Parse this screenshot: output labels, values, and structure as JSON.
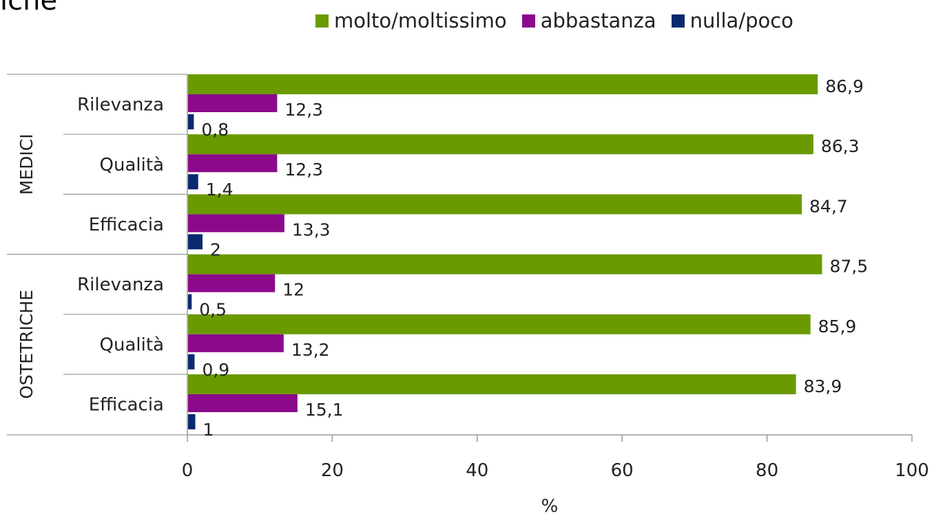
{
  "top_text": "iche",
  "chart_data": {
    "type": "bar",
    "orientation": "horizontal",
    "groups": [
      {
        "label": "MEDICI",
        "categories": [
          "Rilevanza",
          "Qualità",
          "Efficacia"
        ]
      },
      {
        "label": "OSTETRICHE",
        "categories": [
          "Rilevanza",
          "Qualità",
          "Efficacia"
        ]
      }
    ],
    "series": [
      {
        "name": "molto/moltissimo",
        "color": "#6a9a00",
        "values": [
          86.9,
          86.3,
          84.7,
          87.5,
          85.9,
          83.9
        ],
        "labels": [
          "86,9",
          "86,3",
          "84,7",
          "87,5",
          "85,9",
          "83,9"
        ]
      },
      {
        "name": "abbastanza",
        "color": "#8b0a8b",
        "values": [
          12.3,
          12.3,
          13.3,
          12,
          13.2,
          15.1
        ],
        "labels": [
          "12,3",
          "12,3",
          "13,3",
          "12",
          "13,2",
          "15,1"
        ]
      },
      {
        "name": "nulla/poco",
        "color": "#0a2a6e",
        "values": [
          0.8,
          1.4,
          2,
          0.5,
          0.9,
          1
        ],
        "labels": [
          "0,8",
          "1,4",
          "2",
          "0,5",
          "0,9",
          "1"
        ]
      }
    ],
    "xlabel": "%",
    "xlim": [
      0,
      100
    ],
    "xticks": [
      "0",
      "20",
      "40",
      "60",
      "80",
      "100"
    ],
    "grid": false,
    "legend_position": "top"
  }
}
